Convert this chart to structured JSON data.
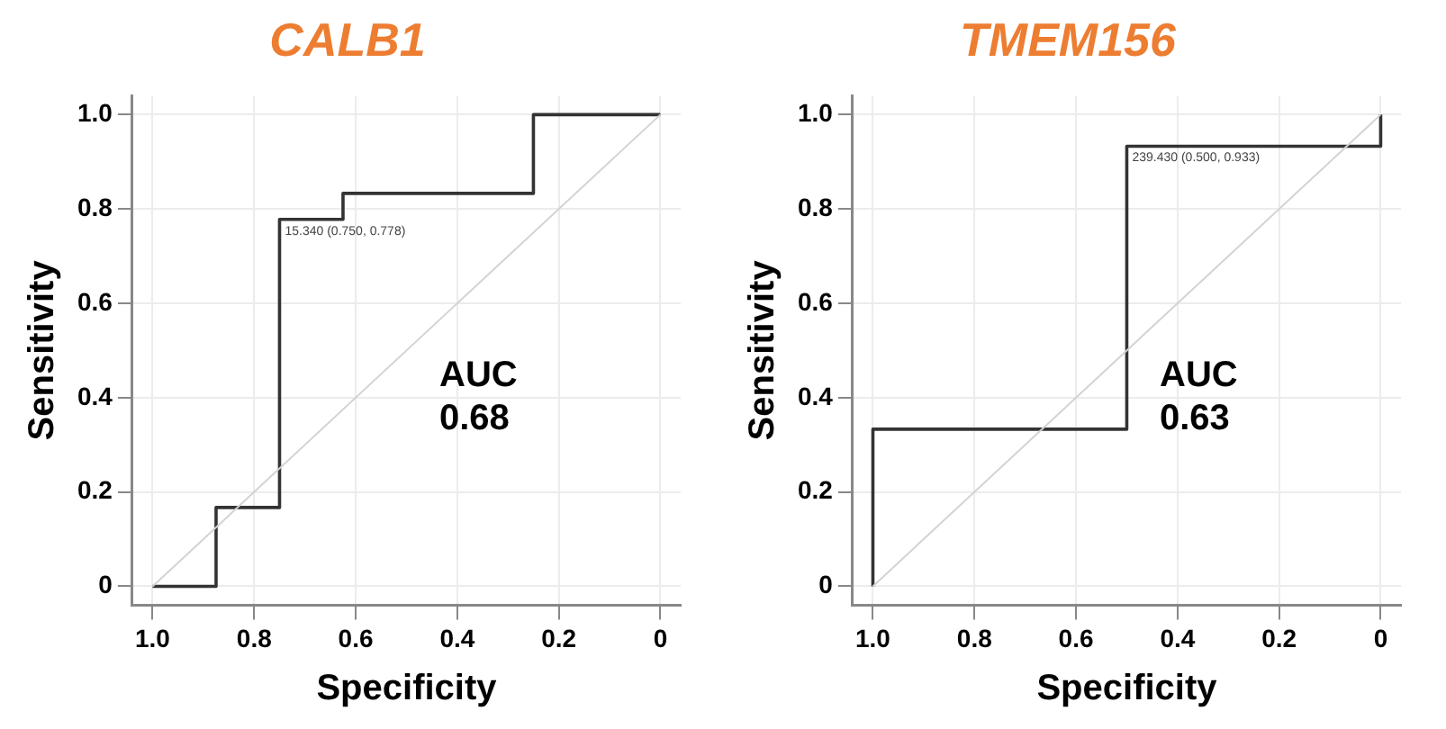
{
  "chart_data": [
    {
      "type": "line",
      "title": "CALB1",
      "xlabel": "Specificity",
      "ylabel": "Sensitivity",
      "xlim": [
        1.04,
        -0.04
      ],
      "ylim": [
        -0.04,
        1.04
      ],
      "xticks": [
        {
          "value": 1,
          "label": "1.0"
        },
        0.8,
        0.6,
        0.4,
        0.2,
        0
      ],
      "yticks": [
        0,
        0.2,
        0.4,
        0.6,
        0.8,
        {
          "value": 1,
          "label": "1.0"
        }
      ],
      "grid": true,
      "series": [
        {
          "color": "#d3d3d3",
          "x": [
            1,
            0
          ],
          "values": [
            0,
            1
          ]
        },
        {
          "color": "#333333",
          "x": [
            1,
            0.875,
            0.875,
            0.75,
            0.75,
            0.625,
            0.625,
            0.25,
            0.25,
            0
          ],
          "values": [
            0,
            0,
            0.167,
            0.167,
            0.778,
            0.778,
            0.833,
            0.833,
            1,
            1
          ]
        }
      ],
      "annotations": [
        {
          "text": "15.340 (0.750, 0.778)",
          "x": 0.75,
          "y": 0.778
        },
        "AUC 0.68"
      ]
    },
    {
      "type": "line",
      "title": "TMEM156",
      "xlabel": "Specificity",
      "ylabel": "Sensitivity",
      "xlim": [
        1.04,
        -0.04
      ],
      "ylim": [
        -0.04,
        1.04
      ],
      "xticks": [
        {
          "value": 1,
          "label": "1.0"
        },
        0.8,
        0.6,
        0.4,
        0.2,
        0
      ],
      "yticks": [
        0,
        0.2,
        0.4,
        0.6,
        0.8,
        {
          "value": 1,
          "label": "1.0"
        }
      ],
      "grid": true,
      "series": [
        {
          "color": "#d3d3d3",
          "x": [
            1,
            0
          ],
          "values": [
            0,
            1
          ]
        },
        {
          "color": "#333333",
          "x": [
            1,
            1,
            0.5,
            0.5,
            0,
            0
          ],
          "values": [
            0,
            0.333,
            0.333,
            0.933,
            0.933,
            1
          ]
        }
      ],
      "annotations": [
        {
          "text": "239.430 (0.500, 0.933)",
          "x": 0.5,
          "y": 0.933
        },
        "AUC 0.63"
      ]
    }
  ]
}
